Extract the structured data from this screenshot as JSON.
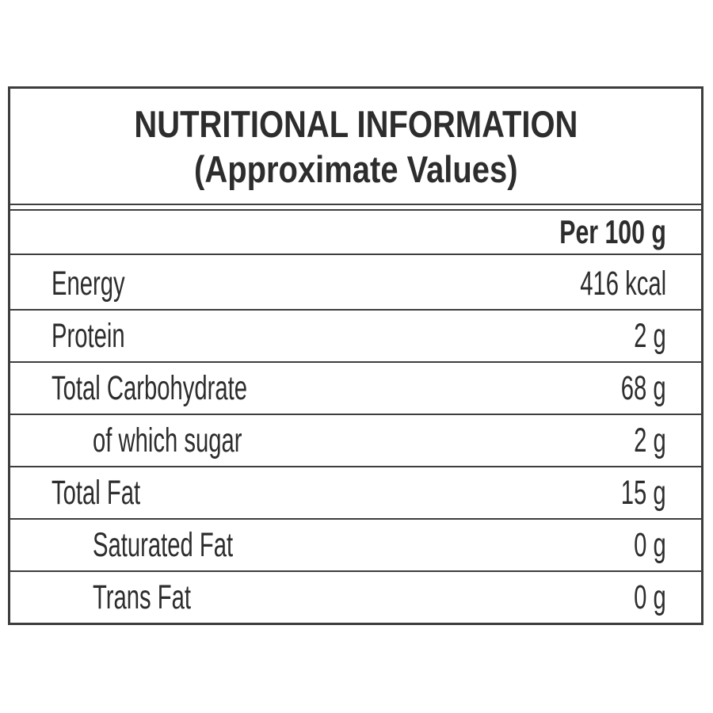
{
  "panel": {
    "title": "NUTRITIONAL INFORMATION",
    "subtitle": "(Approximate Values)",
    "column_header": "Per 100 g",
    "rows": [
      {
        "label": "Energy",
        "value": "416 kcal",
        "indent": false
      },
      {
        "label": "Protein",
        "value": "2 g",
        "indent": false
      },
      {
        "label": "Total Carbohydrate",
        "value": "68 g",
        "indent": false
      },
      {
        "label": "of which sugar",
        "value": "2 g",
        "indent": true
      },
      {
        "label": "Total Fat",
        "value": "15 g",
        "indent": false
      },
      {
        "label": "Saturated Fat",
        "value": "0 g",
        "indent": true
      },
      {
        "label": "Trans Fat",
        "value": "0 g",
        "indent": true
      }
    ],
    "colors": {
      "text": "#2d2d2d",
      "border": "#3d3d3d",
      "background": "#ffffff"
    }
  }
}
